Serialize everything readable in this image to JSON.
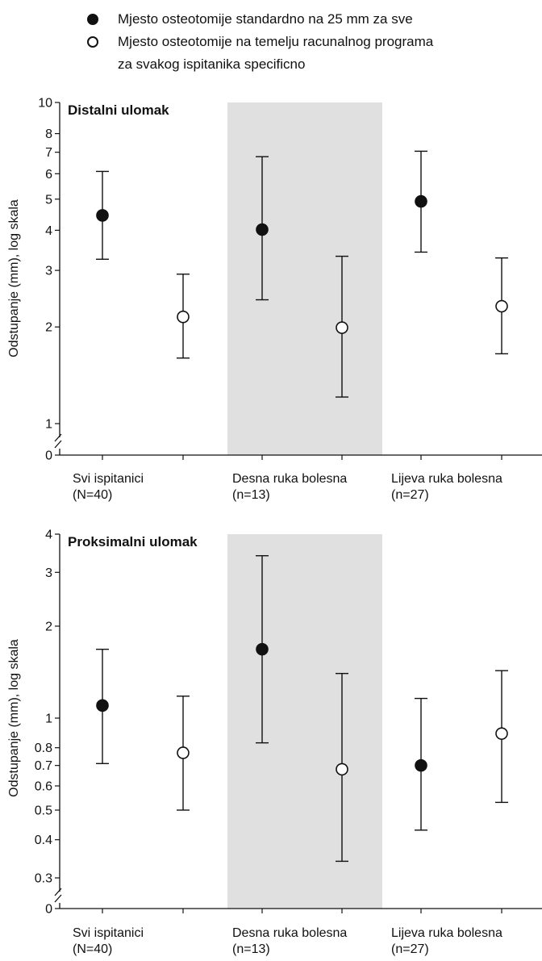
{
  "legend": {
    "standard_label": "Mjesto osteotomije standardno na 25 mm za sve",
    "specific_label_line1": "Mjesto osteotomije na temelju racunalnog programa",
    "specific_label_line2": "za svakog ispitanika specificno"
  },
  "colors": {
    "filled": "#111111",
    "open": "#ffffff",
    "shade": "#e0e0e0",
    "axis": "#111111"
  },
  "chart_data": [
    {
      "type": "scatter",
      "title": "Distalni ulomak",
      "ylabel": "Odstupanje (mm), log skala",
      "log_scale": true,
      "axis_break": true,
      "ylim": [
        1,
        10
      ],
      "yticks": [
        1,
        2,
        3,
        4,
        5,
        6,
        7,
        8,
        10
      ],
      "zero_label": "0",
      "groups": [
        {
          "line1": "Svi ispitanici",
          "line2": "(N=40)",
          "shaded": false
        },
        {
          "line1": "Desna ruka bolesna",
          "line2": "(n=13)",
          "shaded": true
        },
        {
          "line1": "Lijeva ruka bolesna",
          "line2": "(n=27)",
          "shaded": false
        }
      ],
      "series": [
        {
          "marker": "filled",
          "values": [
            4.45,
            4.02,
            4.92
          ],
          "lower": [
            3.25,
            2.43,
            3.42
          ],
          "upper": [
            6.1,
            6.78,
            7.05
          ]
        },
        {
          "marker": "open",
          "values": [
            2.15,
            1.99,
            2.32
          ],
          "lower": [
            1.6,
            1.21,
            1.65
          ],
          "upper": [
            2.92,
            3.32,
            3.28
          ]
        }
      ]
    },
    {
      "type": "scatter",
      "title": "Proksimalni ulomak",
      "ylabel": "Odstupanje (mm), log skala",
      "log_scale": true,
      "axis_break": true,
      "ylim": [
        0.3,
        4
      ],
      "yticks": [
        0.3,
        0.4,
        0.5,
        0.6,
        0.7,
        0.8,
        1,
        2,
        3,
        4
      ],
      "zero_label": "0",
      "groups": [
        {
          "line1": "Svi ispitanici",
          "line2": "(N=40)",
          "shaded": false
        },
        {
          "line1": "Desna ruka bolesna",
          "line2": "(n=13)",
          "shaded": true
        },
        {
          "line1": "Lijeva ruka bolesna",
          "line2": "(n=27)",
          "shaded": false
        }
      ],
      "series": [
        {
          "marker": "filled",
          "values": [
            1.1,
            1.68,
            0.7
          ],
          "lower": [
            0.71,
            0.83,
            0.43
          ],
          "upper": [
            1.68,
            3.4,
            1.16
          ]
        },
        {
          "marker": "open",
          "values": [
            0.77,
            0.68,
            0.89
          ],
          "lower": [
            0.5,
            0.34,
            0.53
          ],
          "upper": [
            1.18,
            1.4,
            1.43
          ]
        }
      ]
    }
  ]
}
